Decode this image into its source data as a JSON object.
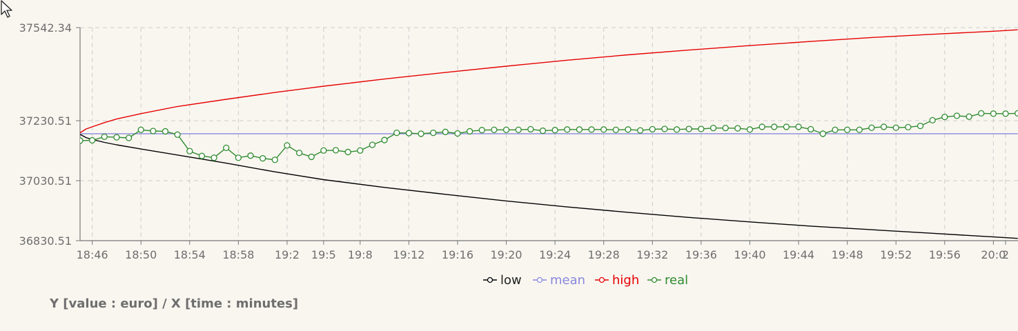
{
  "caption": "Y [value : euro] / X [time : minutes]",
  "colors": {
    "background": "#f9f6f0",
    "grid": "#cccccc",
    "axis": "#777777",
    "text": "#6e6e6e"
  },
  "icons": {
    "cursor": "mouse-pointer-icon"
  },
  "chart_data": {
    "type": "line",
    "title": "",
    "xlabel": "X [time : minutes]",
    "ylabel": "Y [value : euro]",
    "ylim": [
      36830.51,
      37542.34
    ],
    "y_ticks": [
      "37542.34",
      "37230.51",
      "37030.51",
      "36830.51"
    ],
    "y_tick_values": [
      37542.34,
      37230.51,
      37030.51,
      36830.51
    ],
    "xlim": [
      0,
      76
    ],
    "x_ticks": [
      {
        "pos": 1,
        "label": "18:46"
      },
      {
        "pos": 5,
        "label": "18:50"
      },
      {
        "pos": 9,
        "label": "18:54"
      },
      {
        "pos": 13,
        "label": "18:58"
      },
      {
        "pos": 17,
        "label": "19:2"
      },
      {
        "pos": 20,
        "label": "19:5"
      },
      {
        "pos": 23,
        "label": "19:8"
      },
      {
        "pos": 27,
        "label": "19:12"
      },
      {
        "pos": 31,
        "label": "19:16"
      },
      {
        "pos": 35,
        "label": "19:20"
      },
      {
        "pos": 39,
        "label": "19:24"
      },
      {
        "pos": 43,
        "label": "19:28"
      },
      {
        "pos": 47,
        "label": "19:32"
      },
      {
        "pos": 51,
        "label": "19:36"
      },
      {
        "pos": 55,
        "label": "19:40"
      },
      {
        "pos": 59,
        "label": "19:44"
      },
      {
        "pos": 63,
        "label": "19:48"
      },
      {
        "pos": 67,
        "label": "19:52"
      },
      {
        "pos": 71,
        "label": "19:56"
      },
      {
        "pos": 75,
        "label": "20:0"
      },
      {
        "pos": 76,
        "label": "2"
      }
    ],
    "grid": true,
    "legend": "bottom-center",
    "series": [
      {
        "name": "low",
        "color": "#000000",
        "markers": false,
        "x": [
          0,
          0.5,
          1,
          2,
          3,
          5,
          8,
          12,
          16,
          20,
          25,
          30,
          35,
          40,
          45,
          50,
          55,
          60,
          65,
          70,
          75,
          77
        ],
        "values": [
          37185,
          37174,
          37168,
          37158,
          37150,
          37136,
          37116,
          37089,
          37060,
          37034,
          37008,
          36985,
          36963,
          36943,
          36925,
          36908,
          36893,
          36879,
          36867,
          36855,
          36843,
          36838
        ]
      },
      {
        "name": "mean",
        "color": "#8888dd",
        "markers": false,
        "x": [
          0,
          77
        ],
        "values": [
          37187,
          37187
        ]
      },
      {
        "name": "high",
        "color": "#e60000",
        "markers": false,
        "x": [
          0,
          0.5,
          1,
          2,
          3,
          5,
          8,
          12,
          16,
          20,
          25,
          30,
          35,
          40,
          45,
          50,
          55,
          60,
          65,
          70,
          75,
          77
        ],
        "values": [
          37190,
          37203,
          37210,
          37224,
          37236,
          37254,
          37278,
          37302,
          37325,
          37346,
          37370,
          37392,
          37413,
          37433,
          37451,
          37467,
          37482,
          37496,
          37509,
          37520,
          37530,
          37535
        ]
      },
      {
        "name": "real",
        "color": "#2e8b2e",
        "markers": true,
        "x": [
          0,
          1,
          2,
          3,
          4,
          5,
          6,
          7,
          8,
          9,
          10,
          11,
          12,
          13,
          14,
          15,
          16,
          17,
          18,
          19,
          20,
          21,
          22,
          23,
          24,
          25,
          26,
          27,
          28,
          29,
          30,
          31,
          32,
          33,
          34,
          35,
          36,
          37,
          38,
          39,
          40,
          41,
          42,
          43,
          44,
          45,
          46,
          47,
          48,
          49,
          50,
          51,
          52,
          53,
          54,
          55,
          56,
          57,
          58,
          59,
          60,
          61,
          62,
          63,
          64,
          65,
          66,
          67,
          68,
          69,
          70,
          71,
          72,
          73,
          74,
          75,
          76,
          77
        ],
        "values": [
          37164,
          37165,
          37177,
          37175,
          37173,
          37200,
          37196,
          37195,
          37184,
          37129,
          37113,
          37107,
          37140,
          37107,
          37114,
          37105,
          37100,
          37148,
          37123,
          37110,
          37131,
          37132,
          37126,
          37131,
          37150,
          37166,
          37190,
          37189,
          37187,
          37190,
          37193,
          37188,
          37195,
          37199,
          37200,
          37200,
          37200,
          37202,
          37197,
          37199,
          37201,
          37201,
          37201,
          37201,
          37200,
          37201,
          37198,
          37202,
          37203,
          37201,
          37203,
          37203,
          37206,
          37206,
          37205,
          37201,
          37210,
          37210,
          37210,
          37210,
          37202,
          37187,
          37200,
          37200,
          37200,
          37207,
          37210,
          37207,
          37209,
          37213,
          37232,
          37243,
          37247,
          37244,
          37255,
          37254,
          37254,
          37255
        ]
      }
    ]
  }
}
